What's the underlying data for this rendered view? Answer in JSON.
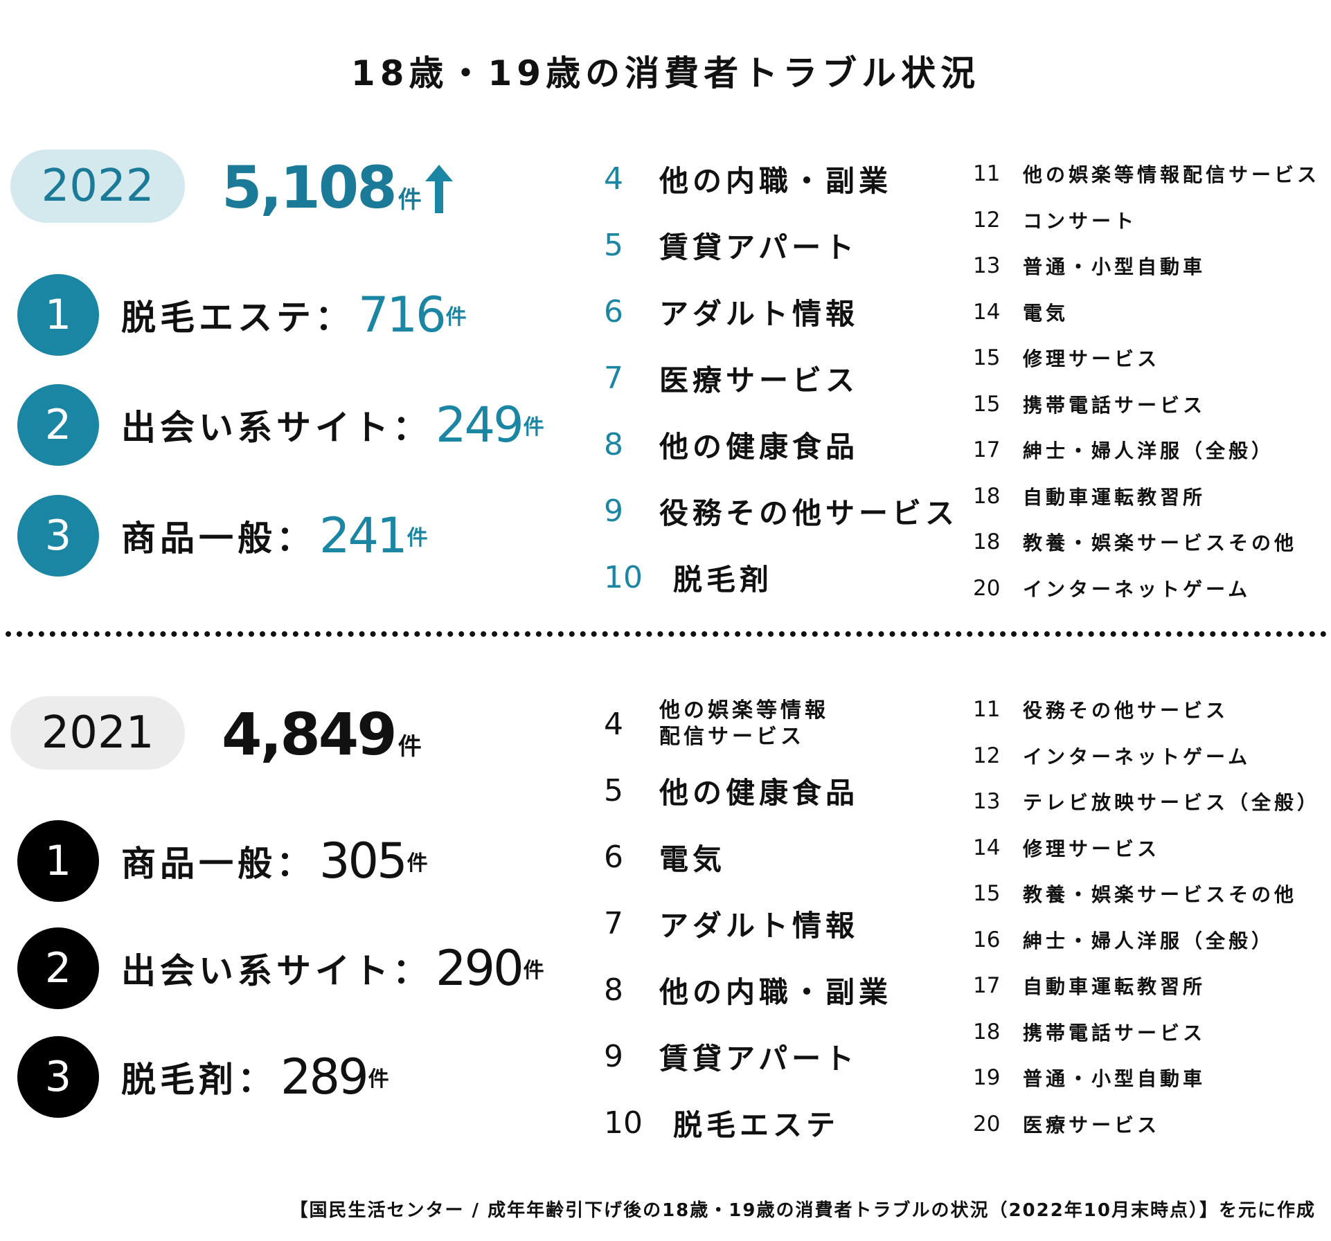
{
  "title": "18歳・19歳の消費者トラブル状況",
  "colors": {
    "accent": "#1a86a3",
    "accent_light": "#d4e9ee",
    "gray_pill": "#ececec",
    "black": "#000000"
  },
  "arrow_icon": "up-arrow-icon",
  "y2022": {
    "year": "2022",
    "total": "5,108",
    "unit": "件",
    "top3": [
      {
        "rank": "1",
        "name": "脱毛エステ：",
        "value": "716",
        "unit": "件"
      },
      {
        "rank": "2",
        "name": "出会い系サイト：",
        "value": "249",
        "unit": "件"
      },
      {
        "rank": "3",
        "name": "商品一般：",
        "value": "241",
        "unit": "件"
      }
    ],
    "mid": [
      {
        "num": "4",
        "label": "他の内職・副業"
      },
      {
        "num": "5",
        "label": "賃貸アパート"
      },
      {
        "num": "6",
        "label": "アダルト情報"
      },
      {
        "num": "7",
        "label": "医療サービス"
      },
      {
        "num": "8",
        "label": "他の健康食品"
      },
      {
        "num": "9",
        "label": "役務その他サービス"
      },
      {
        "num": "10",
        "label": "脱毛剤"
      }
    ],
    "right": [
      {
        "num": "11",
        "label": "他の娯楽等情報配信サービス"
      },
      {
        "num": "12",
        "label": "コンサート"
      },
      {
        "num": "13",
        "label": "普通・小型自動車"
      },
      {
        "num": "14",
        "label": "電気"
      },
      {
        "num": "15",
        "label": "修理サービス"
      },
      {
        "num": "15",
        "label": "携帯電話サービス"
      },
      {
        "num": "17",
        "label": "紳士・婦人洋服（全般）"
      },
      {
        "num": "18",
        "label": "自動車運転教習所"
      },
      {
        "num": "18",
        "label": "教養・娯楽サービスその他"
      },
      {
        "num": "20",
        "label": "インターネットゲーム"
      }
    ]
  },
  "y2021": {
    "year": "2021",
    "total": "4,849",
    "unit": "件",
    "top3": [
      {
        "rank": "1",
        "name": "商品一般：",
        "value": "305",
        "unit": "件"
      },
      {
        "rank": "2",
        "name": "出会い系サイト：",
        "value": "290",
        "unit": "件"
      },
      {
        "rank": "3",
        "name": "脱毛剤：",
        "value": "289",
        "unit": "件"
      }
    ],
    "mid": [
      {
        "num": "4",
        "label": "他の娯楽等情報\n配信サービス"
      },
      {
        "num": "5",
        "label": "他の健康食品"
      },
      {
        "num": "6",
        "label": "電気"
      },
      {
        "num": "7",
        "label": "アダルト情報"
      },
      {
        "num": "8",
        "label": "他の内職・副業"
      },
      {
        "num": "9",
        "label": "賃貸アパート"
      },
      {
        "num": "10",
        "label": "脱毛エステ"
      }
    ],
    "right": [
      {
        "num": "11",
        "label": "役務その他サービス"
      },
      {
        "num": "12",
        "label": "インターネットゲーム"
      },
      {
        "num": "13",
        "label": "テレビ放映サービス（全般）"
      },
      {
        "num": "14",
        "label": "修理サービス"
      },
      {
        "num": "15",
        "label": "教養・娯楽サービスその他"
      },
      {
        "num": "16",
        "label": "紳士・婦人洋服（全般）"
      },
      {
        "num": "17",
        "label": "自動車運転教習所"
      },
      {
        "num": "18",
        "label": "携帯電話サービス"
      },
      {
        "num": "19",
        "label": "普通・小型自動車"
      },
      {
        "num": "20",
        "label": "医療サービス"
      }
    ]
  },
  "footer": "【国民生活センター / 成年年齢引下げ後の18歳・19歳の消費者トラブルの状況（2022年10月末時点）】を元に作成"
}
